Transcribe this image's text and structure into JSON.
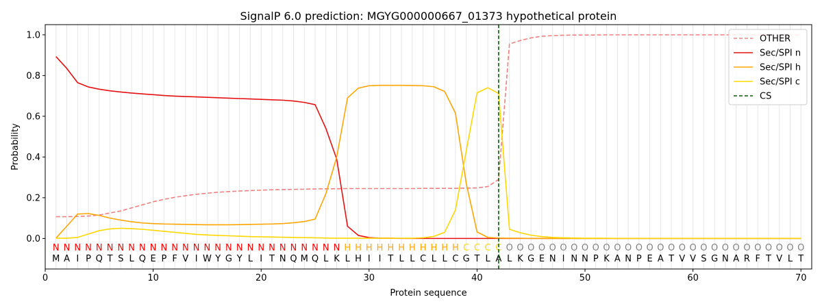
{
  "chart_data": {
    "type": "line",
    "title": "SignalP 6.0 prediction: MGYG000000667_01373 hypothetical protein",
    "xlabel": "Protein sequence",
    "ylabel": "Probability",
    "xlim": [
      0,
      71
    ],
    "ylim": [
      -0.15,
      1.05
    ],
    "xticks": [
      "0",
      "10",
      "20",
      "30",
      "40",
      "50",
      "60",
      "70"
    ],
    "yticks": [
      "0.0",
      "0.2",
      "0.4",
      "0.6",
      "0.8",
      "1.0"
    ],
    "grid": "vertical-per-residue",
    "legend": "top-right",
    "sequence": "MAIPQTSLQEPFVIWYGYLITNQMQLKLHIITLLCLLCGTLALKGENINNPKANPEATVVSGNARFTVLT",
    "labels": "NNNNNNNNNNNNNNNNNNNNNNNNNNNHHHHHHHHHHHCCCCOOOOOOOOOOOOOOOOOOOOOOOOOOOO",
    "label_colors": {
      "N": "#ff0000",
      "H": "#ffa500",
      "C": "#ffd700",
      "O": "#808080"
    },
    "cleavage_site": 42,
    "series": [
      {
        "name": "OTHER",
        "color": "#f08080",
        "dash": true,
        "values": [
          0.107,
          0.107,
          0.108,
          0.11,
          0.115,
          0.125,
          0.135,
          0.15,
          0.165,
          0.18,
          0.192,
          0.202,
          0.21,
          0.217,
          0.222,
          0.227,
          0.23,
          0.233,
          0.235,
          0.237,
          0.239,
          0.24,
          0.241,
          0.242,
          0.243,
          0.244,
          0.244,
          0.245,
          0.245,
          0.245,
          0.245,
          0.245,
          0.245,
          0.245,
          0.246,
          0.246,
          0.246,
          0.246,
          0.247,
          0.248,
          0.255,
          0.29,
          0.955,
          0.972,
          0.985,
          0.993,
          0.996,
          0.998,
          0.999,
          0.999,
          0.999,
          1.0,
          1.0,
          1.0,
          1.0,
          1.0,
          1.0,
          1.0,
          1.0,
          1.0,
          1.0,
          1.0,
          1.0,
          1.0,
          1.0,
          1.0,
          1.0,
          1.0,
          1.0,
          1.0
        ]
      },
      {
        "name": "Sec/SPI n",
        "color": "#e61010",
        "dash": false,
        "values": [
          0.893,
          0.835,
          0.765,
          0.744,
          0.733,
          0.725,
          0.719,
          0.714,
          0.71,
          0.706,
          0.702,
          0.699,
          0.697,
          0.695,
          0.693,
          0.691,
          0.689,
          0.687,
          0.685,
          0.683,
          0.681,
          0.679,
          0.675,
          0.668,
          0.657,
          0.54,
          0.39,
          0.06,
          0.015,
          0.004,
          0.001,
          0.001,
          0,
          0,
          0,
          0,
          0,
          0,
          0,
          0,
          0,
          0,
          0,
          0,
          0,
          0,
          0,
          0,
          0,
          0,
          0,
          0,
          0,
          0,
          0,
          0,
          0,
          0,
          0,
          0,
          0,
          0,
          0,
          0,
          0,
          0,
          0,
          0,
          0,
          0
        ]
      },
      {
        "name": "Sec/SPI h",
        "color": "#ffa500",
        "dash": false,
        "values": [
          0.002,
          0.06,
          0.12,
          0.122,
          0.113,
          0.1,
          0.09,
          0.082,
          0.076,
          0.073,
          0.071,
          0.07,
          0.069,
          0.068,
          0.067,
          0.067,
          0.067,
          0.068,
          0.069,
          0.07,
          0.071,
          0.073,
          0.077,
          0.083,
          0.095,
          0.22,
          0.4,
          0.69,
          0.738,
          0.75,
          0.752,
          0.752,
          0.752,
          0.751,
          0.75,
          0.745,
          0.722,
          0.615,
          0.27,
          0.032,
          0.005,
          0.002,
          0.001,
          0.001,
          0,
          0,
          0,
          0,
          0,
          0,
          0,
          0,
          0,
          0,
          0,
          0,
          0,
          0,
          0,
          0,
          0,
          0,
          0,
          0,
          0,
          0,
          0,
          0,
          0,
          0
        ]
      },
      {
        "name": "Sec/SPI c",
        "color": "#ffd700",
        "dash": false,
        "values": [
          0.001,
          0.001,
          0.005,
          0.022,
          0.038,
          0.047,
          0.05,
          0.048,
          0.045,
          0.04,
          0.035,
          0.03,
          0.025,
          0.02,
          0.017,
          0.015,
          0.013,
          0.011,
          0.009,
          0.008,
          0.007,
          0.006,
          0.005,
          0.004,
          0.003,
          0.002,
          0.001,
          0.001,
          0.001,
          0.001,
          0.001,
          0.001,
          0.001,
          0.001,
          0.003,
          0.01,
          0.03,
          0.14,
          0.43,
          0.715,
          0.74,
          0.712,
          0.045,
          0.028,
          0.016,
          0.009,
          0.005,
          0.003,
          0.002,
          0.001,
          0.001,
          0.001,
          0,
          0,
          0,
          0,
          0,
          0,
          0,
          0,
          0,
          0,
          0,
          0,
          0,
          0,
          0,
          0,
          0,
          0
        ]
      },
      {
        "name": "CS",
        "color": "#006400",
        "dash": true,
        "vline": 42
      }
    ]
  }
}
